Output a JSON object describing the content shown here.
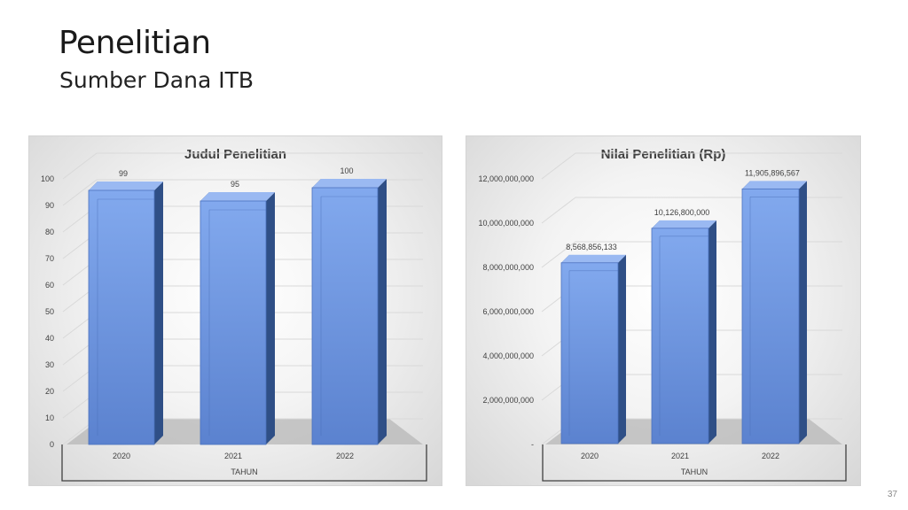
{
  "slide": {
    "title": "Penelitian",
    "subtitle": "Sumber Dana ITB",
    "page_number": "37"
  },
  "colors": {
    "bar_front_top": "#82a9ee",
    "bar_front_bottom": "#5b82cf",
    "bar_side": "#2f4f86",
    "bar_top": "#9ab9f2",
    "floor": "#b7b7b7",
    "text": "#404040"
  },
  "chart_data": [
    {
      "type": "bar",
      "title": "Judul Penelitian",
      "xlabel": "TAHUN",
      "ylabel": "",
      "categories": [
        "2020",
        "2021",
        "2022"
      ],
      "values": [
        99,
        95,
        100
      ],
      "data_labels": [
        "99",
        "95",
        "100"
      ],
      "ylim": [
        0,
        100
      ],
      "yticks": [
        0,
        10,
        20,
        30,
        40,
        50,
        60,
        70,
        80,
        90,
        100
      ],
      "ytick_labels": [
        "0",
        "10",
        "20",
        "30",
        "40",
        "50",
        "60",
        "70",
        "80",
        "90",
        "100"
      ],
      "grid": true,
      "legend": "none",
      "style": "3d-column"
    },
    {
      "type": "bar",
      "title": "Nilai Penelitian (Rp)",
      "xlabel": "TAHUN",
      "ylabel": "",
      "categories": [
        "2020",
        "2021",
        "2022"
      ],
      "values": [
        8568856133,
        10126800000,
        11905896567
      ],
      "data_labels": [
        "8,568,856,133",
        "10,126,800,000",
        "11,905,896,567"
      ],
      "ylim": [
        0,
        12000000000
      ],
      "yticks": [
        0,
        2000000000,
        4000000000,
        6000000000,
        8000000000,
        10000000000,
        12000000000
      ],
      "ytick_labels": [
        "-",
        "2,000,000,000",
        "4,000,000,000",
        "6,000,000,000",
        "8,000,000,000",
        "10,000,000,000",
        "12,000,000,000"
      ],
      "grid": true,
      "legend": "none",
      "style": "3d-column"
    }
  ]
}
